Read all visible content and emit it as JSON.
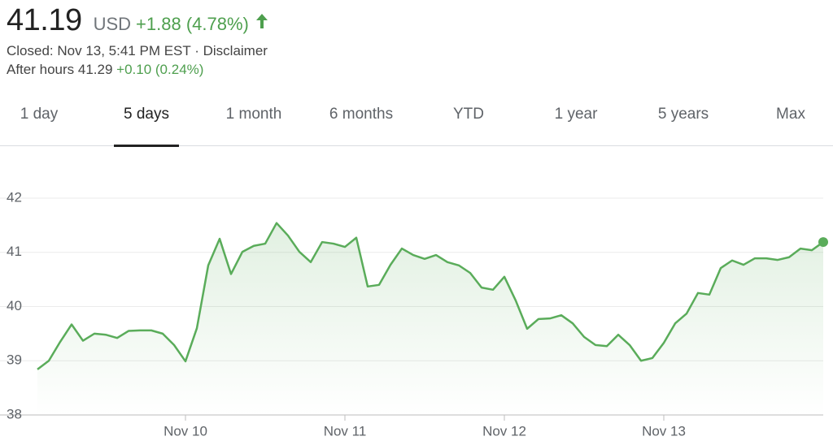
{
  "header": {
    "price": "41.19",
    "currency": "USD",
    "change": "+1.88 (4.78%)",
    "closed": "Closed: Nov 13, 5:41 PM EST",
    "separator": "·",
    "disclaimer": "Disclaimer",
    "after_hours_label": "After hours 41.29",
    "after_hours_change": "+0.10 (0.24%)"
  },
  "tabs": {
    "items": [
      "1 day",
      "5 days",
      "1 month",
      "6 months",
      "YTD",
      "1 year",
      "5 years",
      "Max"
    ],
    "selected": 1
  },
  "chart_data": {
    "type": "line",
    "categories": [
      null,
      null,
      null,
      null,
      null,
      null,
      null,
      null,
      null,
      null,
      null,
      null,
      null,
      "Nov 10",
      null,
      null,
      null,
      null,
      null,
      null,
      null,
      null,
      null,
      null,
      null,
      null,
      null,
      "Nov 11",
      null,
      null,
      null,
      null,
      null,
      null,
      null,
      null,
      null,
      null,
      null,
      null,
      null,
      "Nov 12",
      null,
      null,
      null,
      null,
      null,
      null,
      null,
      null,
      null,
      null,
      null,
      null,
      null,
      "Nov 13",
      null,
      null,
      null,
      null,
      null,
      null,
      null,
      null,
      null,
      null,
      null,
      null,
      null,
      null
    ],
    "series": [
      {
        "color": "#5aac5a",
        "values": [
          38.84,
          39.0,
          39.35,
          39.67,
          39.37,
          39.5,
          39.48,
          39.42,
          39.55,
          39.56,
          39.56,
          39.5,
          39.29,
          38.99,
          39.6,
          40.76,
          41.25,
          40.6,
          41.01,
          41.12,
          41.16,
          41.54,
          41.31,
          41.01,
          40.82,
          41.19,
          41.16,
          41.1,
          41.27,
          40.37,
          40.4,
          40.77,
          41.07,
          40.95,
          40.88,
          40.95,
          40.82,
          40.76,
          40.62,
          40.35,
          40.31,
          40.55,
          40.11,
          39.59,
          39.77,
          39.78,
          39.84,
          39.69,
          39.44,
          39.29,
          39.27,
          39.48,
          39.29,
          39.0,
          39.05,
          39.33,
          39.69,
          39.87,
          40.25,
          40.22,
          40.71,
          40.85,
          40.77,
          40.89,
          40.89,
          40.86,
          40.91,
          41.07,
          41.04,
          41.19
        ]
      }
    ],
    "ylim": [
      38,
      42
    ],
    "yticks": [
      38,
      39,
      40,
      41,
      42
    ],
    "grid": true
  }
}
